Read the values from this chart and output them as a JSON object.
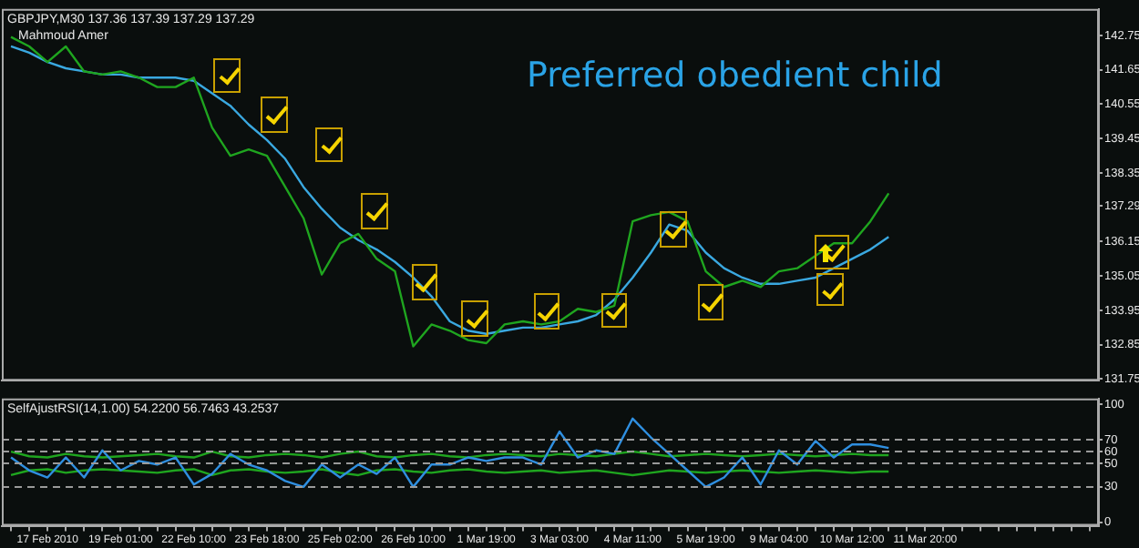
{
  "chart_data": [
    {
      "type": "line",
      "title": "GBPJPY,M30 137.36 137.39 137.29 137.29",
      "annotations": [
        "Mahmoud Amer",
        "Preferred obedient child"
      ],
      "categories": [
        null,
        null,
        null,
        null,
        null,
        null,
        null,
        null,
        null,
        null,
        null,
        null,
        null,
        null,
        null,
        null,
        null,
        null,
        null,
        null,
        null,
        null,
        null,
        null,
        null,
        null,
        null,
        null,
        null,
        null,
        null,
        null,
        null,
        null,
        null,
        null,
        null,
        null,
        null,
        null,
        null,
        null,
        null,
        null,
        null,
        null,
        null,
        null,
        null,
        null,
        null,
        null,
        null,
        null,
        null,
        null,
        null,
        null,
        null,
        null
      ],
      "series": [
        {
          "color": "#1fa51f",
          "values": [
            142.7,
            142.4,
            141.9,
            142.4,
            141.6,
            141.5,
            141.6,
            141.4,
            141.1,
            141.1,
            141.4,
            139.8,
            138.9,
            139.1,
            138.9,
            137.9,
            136.9,
            135.1,
            136.1,
            136.4,
            135.6,
            135.2,
            132.8,
            133.5,
            133.3,
            133.0,
            132.9,
            133.5,
            133.6,
            133.5,
            133.6,
            134.0,
            133.9,
            134.1,
            136.8,
            137.0,
            137.1,
            136.8,
            135.2,
            134.7,
            134.9,
            134.7,
            135.2,
            135.3,
            135.7,
            136.1,
            136.1,
            136.8,
            137.7,
            null,
            null,
            null,
            null,
            null,
            null,
            null,
            null,
            null,
            null,
            null
          ]
        },
        {
          "color": "#3aa8e0",
          "values": [
            142.4,
            142.2,
            141.9,
            141.7,
            141.6,
            141.5,
            141.5,
            141.4,
            141.4,
            141.4,
            141.3,
            140.9,
            140.5,
            139.9,
            139.4,
            138.8,
            137.9,
            137.2,
            136.6,
            136.2,
            135.9,
            135.5,
            135.0,
            134.4,
            133.6,
            133.3,
            133.2,
            133.3,
            133.4,
            133.4,
            133.5,
            133.6,
            133.8,
            134.3,
            135.0,
            135.8,
            136.7,
            136.5,
            135.8,
            135.3,
            135.0,
            134.8,
            134.8,
            134.9,
            135.0,
            135.3,
            135.6,
            135.9,
            136.3,
            null,
            null,
            null,
            null,
            null,
            null,
            null,
            null,
            null,
            null,
            null
          ]
        }
      ],
      "ylim": [
        131.7,
        143.6
      ],
      "yticks": [
        142.75,
        141.65,
        140.55,
        139.45,
        138.35,
        {
          "value": 137.29,
          "label": "137.29"
        },
        136.15,
        135.05,
        133.95,
        132.85,
        131.75
      ],
      "tick_labels": "y",
      "grid": false,
      "legend": false,
      "marker": "none",
      "line_style": "solid"
    },
    {
      "type": "line",
      "title": "SelfAjustRSI(14,1.00) 54.2200 56.7463 43.2537",
      "categories": [
        null,
        null,
        "17 Feb 2010",
        null,
        null,
        null,
        "19 Feb 01:00",
        null,
        null,
        null,
        "22 Feb 10:00",
        null,
        null,
        null,
        "23 Feb 18:00",
        null,
        null,
        null,
        "25 Feb 02:00",
        null,
        null,
        null,
        "26 Feb 10:00",
        null,
        null,
        null,
        "1 Mar 19:00",
        null,
        null,
        null,
        "3 Mar 03:00",
        null,
        null,
        null,
        "4 Mar 11:00",
        null,
        null,
        null,
        "5 Mar 19:00",
        null,
        null,
        null,
        "9 Mar 04:00",
        null,
        null,
        null,
        "10 Mar 12:00",
        null,
        null,
        null,
        "11 Mar 20:00",
        null,
        null,
        null,
        null,
        null,
        null,
        null,
        null,
        null
      ],
      "series": [
        {
          "color": "#2f8fe0",
          "values": [
            55,
            44,
            38,
            55,
            38,
            61,
            44,
            52,
            49,
            55,
            32,
            41,
            58,
            49,
            44,
            35,
            30,
            49,
            38,
            49,
            41,
            55,
            30,
            49,
            49,
            55,
            52,
            55,
            55,
            49,
            77,
            55,
            61,
            58,
            88,
            72,
            58,
            44,
            30,
            38,
            55,
            32,
            61,
            49,
            69,
            55,
            66,
            66,
            63,
            null,
            null,
            null,
            null,
            null,
            null,
            null,
            null,
            null,
            null,
            null
          ]
        },
        {
          "color": "#1fa51f",
          "values": [
            60,
            56,
            55,
            58,
            56,
            55,
            56,
            57,
            58,
            56,
            55,
            60,
            56,
            55,
            57,
            58,
            57,
            55,
            58,
            60,
            56,
            55,
            57,
            58,
            56,
            55,
            57,
            58,
            57,
            56,
            58,
            57,
            56,
            58,
            60,
            58,
            56,
            57,
            58,
            57,
            56,
            57,
            58,
            57,
            56,
            57,
            58,
            57,
            57,
            null,
            null,
            null,
            null,
            null,
            null,
            null,
            null,
            null,
            null,
            null
          ]
        },
        {
          "color": "#1fa51f",
          "values": [
            40,
            44,
            45,
            42,
            44,
            45,
            44,
            43,
            42,
            44,
            45,
            40,
            44,
            45,
            43,
            42,
            43,
            45,
            42,
            40,
            44,
            45,
            43,
            42,
            44,
            45,
            43,
            42,
            43,
            44,
            42,
            43,
            44,
            42,
            40,
            42,
            44,
            43,
            42,
            43,
            44,
            43,
            42,
            43,
            44,
            43,
            42,
            43,
            43,
            null,
            null,
            null,
            null,
            null,
            null,
            null,
            null,
            null,
            null,
            null
          ]
        }
      ],
      "ylim": [
        -3,
        105
      ],
      "yticks": [
        0,
        30,
        50,
        60,
        70,
        100
      ],
      "ref_lines": [
        {
          "axis": "y",
          "value": 70,
          "color": "#9a9a9a",
          "line_style": "dashed"
        },
        {
          "axis": "y",
          "value": 60,
          "color": "#9a9a9a",
          "line_style": "dashed"
        },
        {
          "axis": "y",
          "value": 50,
          "color": "#9a9a9a",
          "line_style": "dashed"
        },
        {
          "axis": "y",
          "value": 30,
          "color": "#9a9a9a",
          "line_style": "dashed"
        }
      ],
      "grid": false,
      "legend": false,
      "marker": "none",
      "line_style": "solid"
    }
  ]
}
